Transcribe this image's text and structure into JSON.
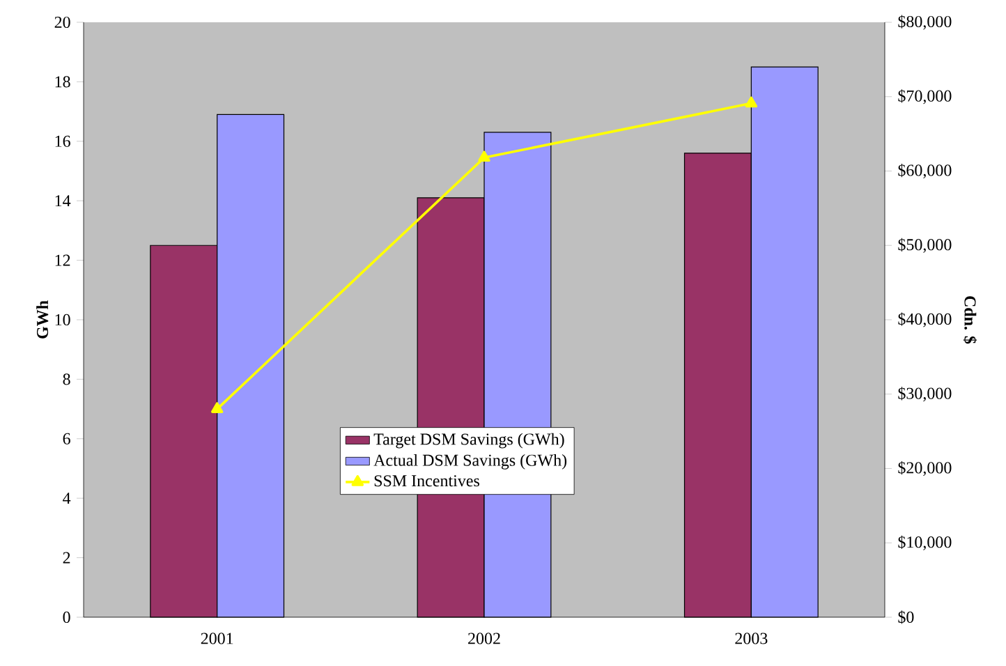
{
  "chart_data": {
    "type": "bar",
    "ylabel": "GWh",
    "y2label": "Cdn. $",
    "categories": [
      "2001",
      "2002",
      "2003"
    ],
    "series": [
      {
        "name": "Target DSM Savings (GWh)",
        "color": "#993366",
        "values": [
          12.5,
          14.1,
          15.6
        ]
      },
      {
        "name": "Actual DSM Savings (GWh)",
        "color": "#9999ff",
        "values": [
          16.9,
          16.3,
          18.5
        ]
      },
      {
        "name": "SSM Incentives",
        "type": "line",
        "axis": "y2",
        "color": "#ffff00",
        "marker": "triangle",
        "values": [
          28000,
          61800,
          69100
        ]
      }
    ],
    "ylim": [
      0,
      20
    ],
    "yticks": [
      0,
      2,
      4,
      6,
      8,
      10,
      12,
      14,
      16,
      18,
      20
    ],
    "y2lim": [
      0,
      80000
    ],
    "y2ticks": [
      {
        "value": 0,
        "label": "$0"
      },
      {
        "value": 10000,
        "label": "$10,000"
      },
      {
        "value": 20000,
        "label": "$20,000"
      },
      {
        "value": 30000,
        "label": "$30,000"
      },
      {
        "value": 40000,
        "label": "$40,000"
      },
      {
        "value": 50000,
        "label": "$50,000"
      },
      {
        "value": 60000,
        "label": "$60,000"
      },
      {
        "value": 70000,
        "label": "$70,000"
      },
      {
        "value": 80000,
        "label": "$80,000"
      }
    ],
    "legend": "center",
    "grid": false
  }
}
